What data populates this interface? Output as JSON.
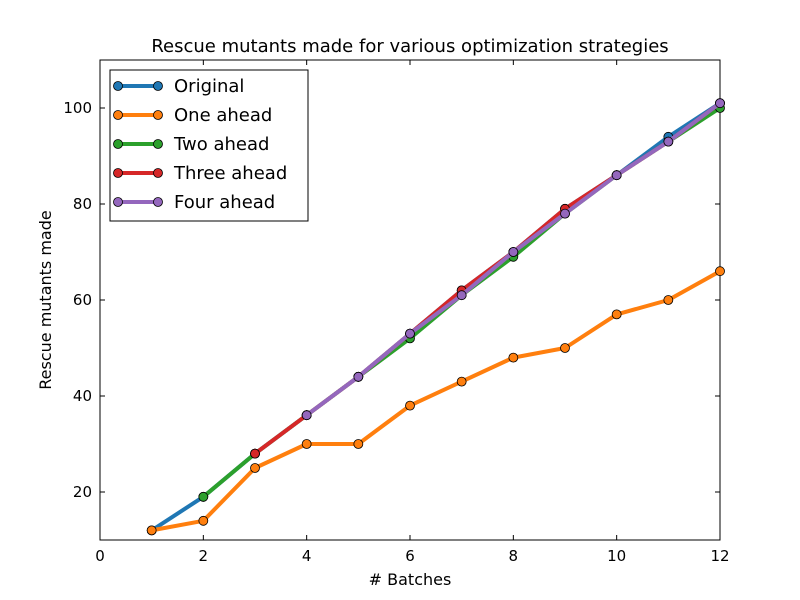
{
  "chart_data": {
    "type": "line",
    "title": "Rescue mutants made for various optimization strategies",
    "xlabel": "# Batches",
    "ylabel": "Rescue mutants made",
    "xlim": [
      0,
      12
    ],
    "ylim": [
      10,
      110
    ],
    "xticks": [
      0,
      2,
      4,
      6,
      8,
      10,
      12
    ],
    "yticks": [
      20,
      40,
      60,
      80,
      100
    ],
    "grid": false,
    "legend_position": "top-left",
    "series": [
      {
        "name": "Original",
        "color": "#1f77b4",
        "x": [
          1,
          2,
          3,
          4,
          5,
          6,
          7,
          8,
          9,
          10,
          11,
          12
        ],
        "y": [
          12,
          19,
          28,
          36,
          44,
          53,
          62,
          70,
          79,
          86,
          94,
          101
        ]
      },
      {
        "name": "One ahead",
        "color": "#ff7f0e",
        "x": [
          1,
          2,
          3,
          4,
          5,
          6,
          7,
          8,
          9,
          10,
          11,
          12
        ],
        "y": [
          12,
          14,
          25,
          30,
          30,
          38,
          43,
          48,
          50,
          57,
          60,
          66
        ]
      },
      {
        "name": "Two ahead",
        "color": "#2ca02c",
        "x": [
          2,
          3,
          4,
          5,
          6,
          7,
          8,
          9,
          10,
          11,
          12
        ],
        "y": [
          19,
          28,
          36,
          44,
          52,
          61,
          69,
          78,
          86,
          93,
          100
        ]
      },
      {
        "name": "Three ahead",
        "color": "#d62728",
        "x": [
          3,
          4,
          5,
          6,
          7,
          8,
          9,
          10,
          11,
          12
        ],
        "y": [
          28,
          36,
          44,
          53,
          62,
          70,
          79,
          86,
          93,
          101
        ]
      },
      {
        "name": "Four ahead",
        "color": "#9467bd",
        "x": [
          4,
          5,
          6,
          7,
          8,
          9,
          10,
          11,
          12
        ],
        "y": [
          36,
          44,
          53,
          61,
          70,
          78,
          86,
          93,
          101
        ]
      }
    ]
  }
}
